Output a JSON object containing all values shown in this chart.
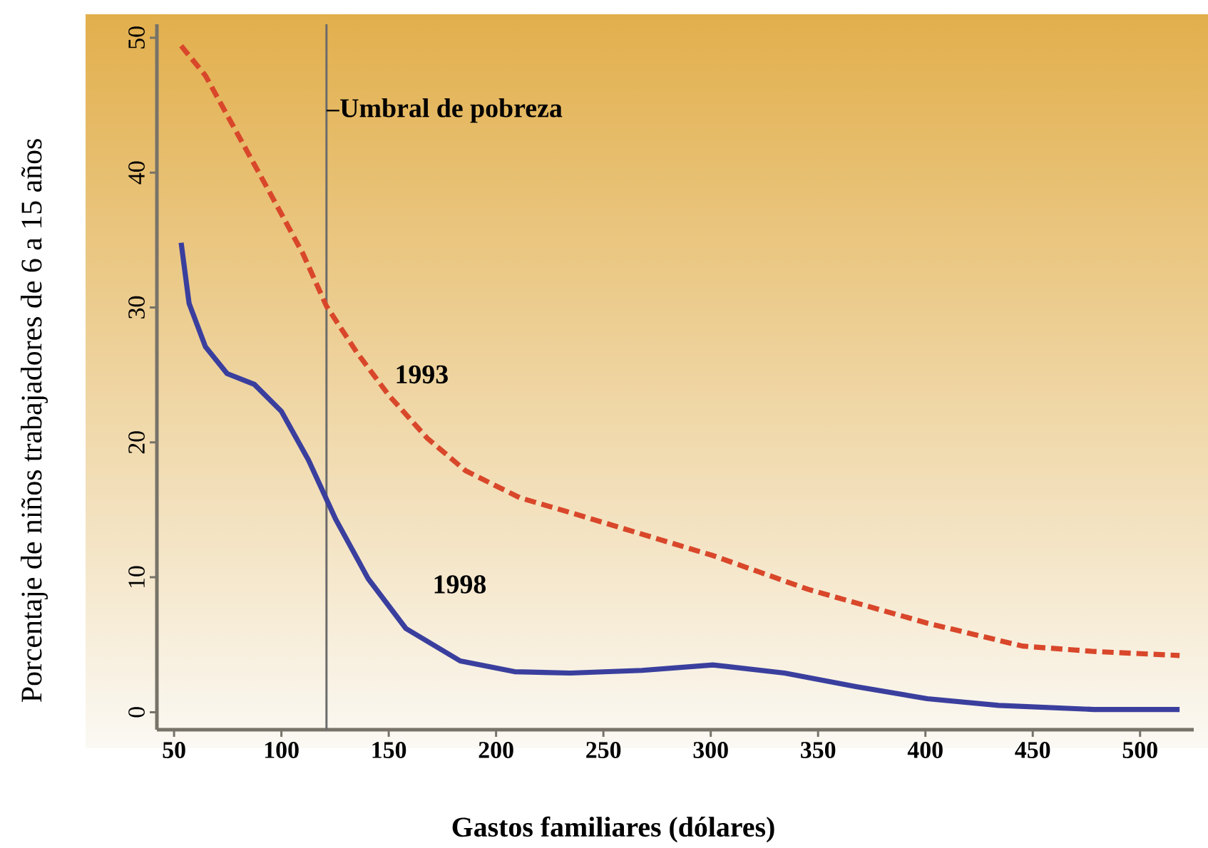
{
  "chart_data": {
    "type": "line",
    "xlabel": "Gastos familiares (dólares)",
    "ylabel": "Porcentaje de niños trabajadores de 6 a 15 años",
    "xlim": [
      42,
      525
    ],
    "ylim": [
      -1.3,
      51
    ],
    "xticks": [
      50,
      100,
      150,
      200,
      250,
      300,
      350,
      400,
      450,
      500
    ],
    "yticks": [
      0,
      10,
      20,
      30,
      40,
      50
    ],
    "grid": false,
    "marker": "none",
    "series": [
      {
        "name": "1993",
        "color": "#d9472b",
        "line_style": "dashed",
        "x": [
          53.3,
          64.6,
          79.8,
          95,
          110,
          121,
          135,
          150,
          168,
          185.8,
          211,
          234.6,
          301.2,
          345.5,
          400.9,
          445.2,
          478.5,
          518.4
        ],
        "values": [
          49.4,
          47.2,
          42.8,
          38.4,
          34.0,
          30.1,
          26.7,
          23.5,
          20.3,
          17.9,
          15.9,
          14.8,
          11.6,
          9.1,
          6.6,
          4.9,
          4.5,
          4.2
        ]
      },
      {
        "name": "1998",
        "color": "#3a3f9e",
        "line_style": "solid",
        "x": [
          53.3,
          57,
          64.6,
          74.7,
          87.4,
          100,
          112.6,
          125.3,
          140.4,
          158,
          183.3,
          208.6,
          234.6,
          268,
          301,
          334.4,
          367.6,
          400.9,
          434.1,
          478.5,
          518.4
        ],
        "values": [
          34.8,
          30.3,
          27.1,
          25.1,
          24.3,
          22.3,
          18.7,
          14.3,
          9.9,
          6.2,
          3.8,
          3.0,
          2.9,
          3.1,
          3.5,
          2.9,
          1.9,
          1.0,
          0.5,
          0.2,
          0.2
        ]
      }
    ],
    "ref_lines": [
      {
        "axis": "x",
        "value": 121,
        "label": "Umbral de pobreza",
        "color": "#6b6b6b"
      }
    ]
  }
}
